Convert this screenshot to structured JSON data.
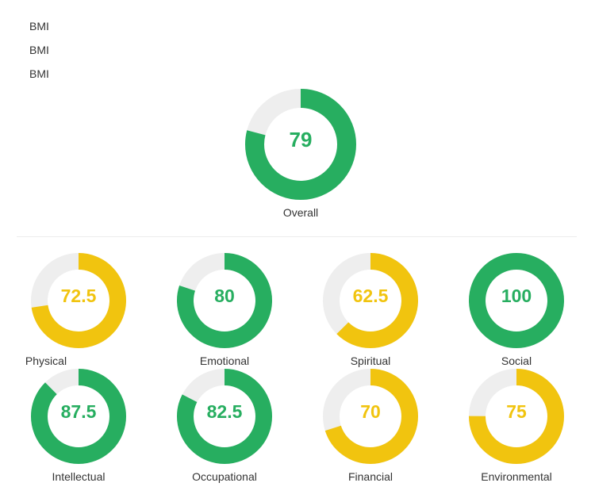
{
  "bmi_lines": [
    "BMI",
    "BMI",
    "BMI"
  ],
  "colors": {
    "good": "#27ae60",
    "warning": "#f1c40f",
    "track": "#eeeeee"
  },
  "overall": {
    "label": "Overall",
    "value": "79",
    "percent": 79,
    "status": "good"
  },
  "dimensions": [
    {
      "label": "Physical",
      "value": "72.5",
      "percent": 72.5,
      "status": "warning"
    },
    {
      "label": "Emotional",
      "value": "80",
      "percent": 80,
      "status": "good"
    },
    {
      "label": "Spiritual",
      "value": "62.5",
      "percent": 62.5,
      "status": "warning"
    },
    {
      "label": "Social",
      "value": "100",
      "percent": 100,
      "status": "good"
    },
    {
      "label": "Intellectual",
      "value": "87.5",
      "percent": 87.5,
      "status": "good"
    },
    {
      "label": "Occupational",
      "value": "82.5",
      "percent": 82.5,
      "status": "good"
    },
    {
      "label": "Financial",
      "value": "70",
      "percent": 70,
      "status": "warning"
    },
    {
      "label": "Environmental",
      "value": "75",
      "percent": 75,
      "status": "warning"
    }
  ]
}
